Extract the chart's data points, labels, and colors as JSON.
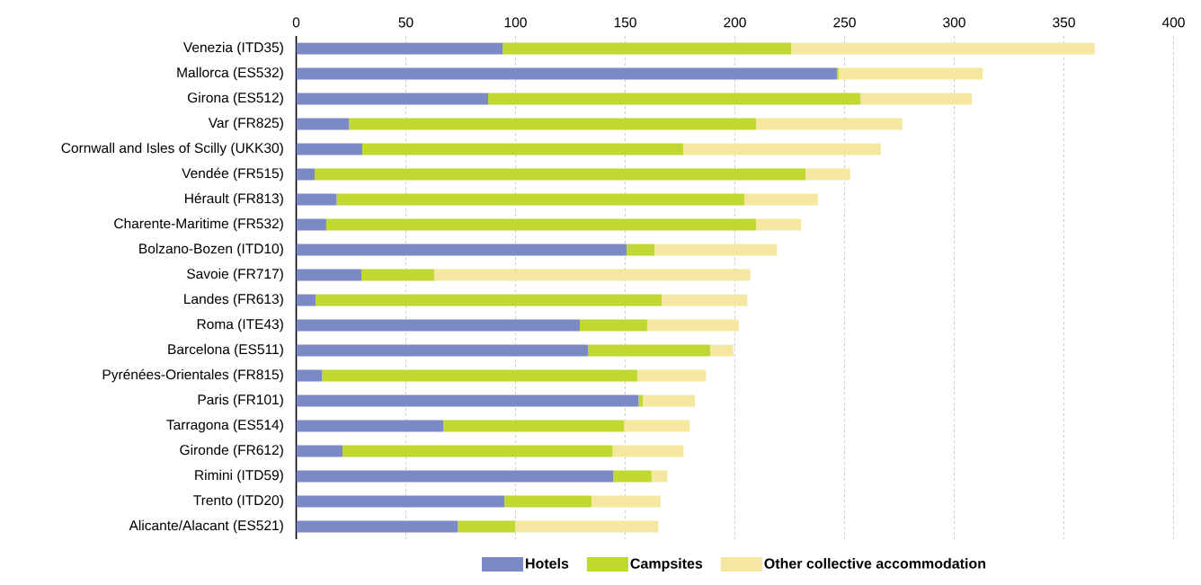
{
  "chart_data": {
    "type": "bar",
    "orientation": "horizontal",
    "stacked": true,
    "categories": [
      "Venezia (ITD35)",
      "Mallorca (ES532)",
      "Girona (ES512)",
      "Var (FR825)",
      "Cornwall and Isles of Scilly (UKK30)",
      "Vendée (FR515)",
      "Hérault (FR813)",
      "Charente-Maritime (FR532)",
      "Bolzano-Bozen (ITD10)",
      "Savoie (FR717)",
      "Landes (FR613)",
      "Roma (ITE43)",
      "Barcelona (ES511)",
      "Pyrénées-Orientales (FR815)",
      "Paris (FR101)",
      "Tarragona (ES514)",
      "Gironde (FR612)",
      "Rimini (ITD59)",
      "Trento (ITD20)",
      "Alicante/Alacant (ES521)"
    ],
    "series": [
      {
        "name": "Hotels",
        "color": "#7b89c4",
        "values": [
          94.1,
          246.5,
          87.5,
          24.0,
          30.1,
          8.4,
          18.4,
          13.7,
          150.6,
          29.7,
          8.8,
          129.3,
          133.1,
          11.8,
          156.1,
          67.0,
          21.1,
          144.6,
          94.9,
          73.7
        ]
      },
      {
        "name": "Campsites",
        "color": "#c1d832",
        "values": [
          131.5,
          0.8,
          169.7,
          185.6,
          146.3,
          223.8,
          185.9,
          195.9,
          12.7,
          33.2,
          157.8,
          30.7,
          55.6,
          143.7,
          1.9,
          82.4,
          123.1,
          17.4,
          39.7,
          26.1
        ]
      },
      {
        "name": "Other collective accommodation",
        "color": "#f5e6a0",
        "values": [
          138.5,
          65.7,
          50.8,
          66.7,
          90.1,
          20.3,
          33.6,
          20.7,
          55.9,
          144.1,
          39.1,
          41.7,
          10.6,
          31.3,
          23.8,
          30.0,
          32.4,
          7.2,
          31.5,
          65.3
        ]
      }
    ],
    "xlim": [
      0,
      400
    ],
    "xticks": [
      0,
      50,
      100,
      150,
      200,
      250,
      300,
      350,
      400
    ],
    "grid": "x",
    "legend": "bottom"
  }
}
